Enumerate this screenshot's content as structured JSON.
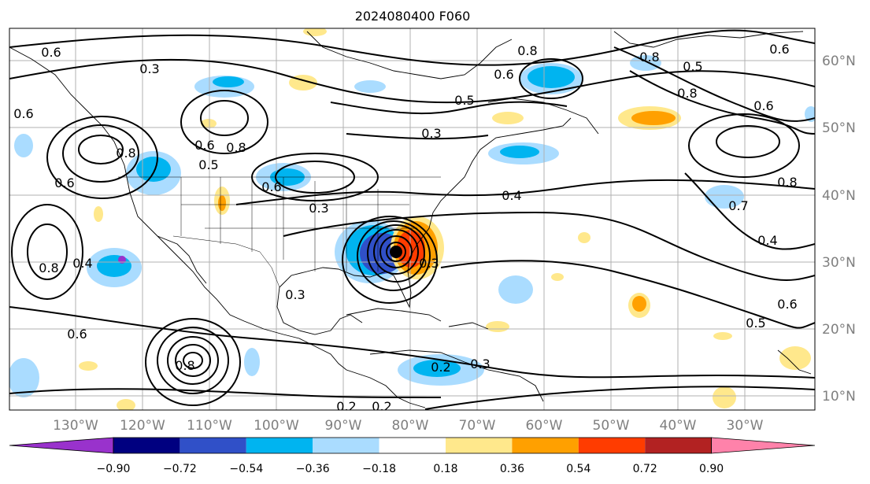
{
  "title": "2024080400 F060",
  "map": {
    "lon_labels": [
      "130°W",
      "120°W",
      "110°W",
      "100°W",
      "90°W",
      "80°W",
      "70°W",
      "60°W",
      "50°W",
      "40°W",
      "30°W"
    ],
    "lat_labels": [
      "60°N",
      "50°N",
      "40°N",
      "30°N",
      "20°N",
      "10°N"
    ],
    "land_color": "#ffffff",
    "coast_color": "#000000",
    "grid_color": "#b0b0b0"
  },
  "colorbar": {
    "ticks": [
      "−0.90",
      "−0.72",
      "−0.54",
      "−0.36",
      "−0.18",
      "0.18",
      "0.36",
      "0.54",
      "0.72",
      "0.90"
    ],
    "colors": [
      "#9932cc",
      "#000080",
      "#3050c8",
      "#00b4f0",
      "#aadcff",
      "#ffffff",
      "#ffe88c",
      "#ffa000",
      "#ff3c00",
      "#b22222",
      "#ff82aa"
    ]
  },
  "contour_labels": [
    "0.3",
    "0.6",
    "0.8",
    "0.4",
    "0.5",
    "0.6",
    "0.8",
    "0.3",
    "0.6",
    "0.8",
    "0.5",
    "0.6",
    "0.8",
    "0.3",
    "0.4",
    "0.8",
    "0.6",
    "0.5",
    "0.8",
    "0.6",
    "0.7",
    "0.8",
    "0.4",
    "0.6",
    "0.5",
    "0.6",
    "0.8",
    "0.3",
    "0.6",
    "0.6",
    "0.2",
    "0.3",
    "0.2",
    "0.2",
    "0.3"
  ],
  "contour_label_count": 35
}
